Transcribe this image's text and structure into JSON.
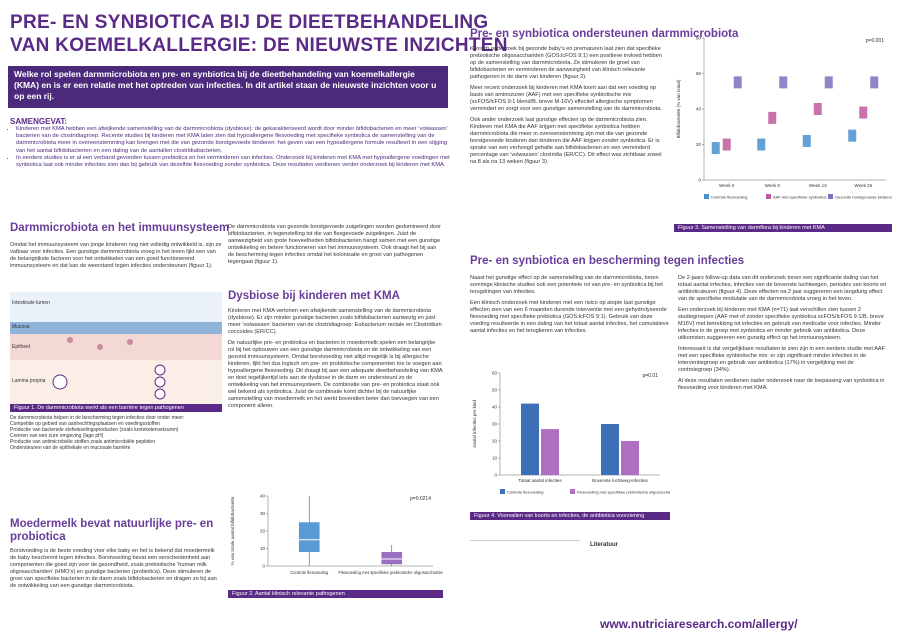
{
  "header": {
    "title_line1": "PRE- EN SYNBIOTICA BIJ DE DIEETBEHANDELING",
    "title_line2": "VAN KOEMELKALLERGIE: DE NIEUWSTE INZICHTEN"
  },
  "intro": "Welke rol spelen darmmicrobiota en pre- en synbiotica bij de dieetbehandeling van koemelkallergie (KMA) en is er een relatie met het optreden van infecties. In dit artikel staan de nieuwste inzichten voor u op een rij.",
  "summary": {
    "heading": "SAMENGEVAT:",
    "bullets": [
      "Kinderen met KMA hebben een afwijkende samenstelling van de darmmicrobiota (dysbiose): de gekarakteriseerd wordt door minder bifidobacterien en meer ‘volwassen’ bacterien van de clostridiagroep. Recente studies bij kinderen met KMA laten zien dat hypoallergene flesvoeding met specifieke synbiotica de samenstelling van de darmmicrobiota meer in overeenstemming kan brengen met die van gezonde borstgevoede kinderen: het geven van een hypoallergene formule resulteert in een stijging van het aantal bifidobacterien en een daling van de aantallen clostridiabacterien.",
      "In eerdere studies is er al een verband gevonden tussen prebiotica en het verminderen van infecties. Onderzoek bij kinderen met KMA met hypoallergene voedingen met synbiotica laat ook minder infecties zien dan bij gebruik van dezelfde flesvoeding zonder synbiotica. Deze resultaten verdienen verder onderzoek bij kinderen met KMA."
    ]
  },
  "sections": [
    {
      "heading": "Darmmicrobiota en het immuunsysteem",
      "paragraphs": [
        "Omdat het immuunsysteem van jonge kinderen nog niet volledig ontwikkeld is, zijn ze vatbaar voor infecties. Een gunstige darmmicrobiota vroeg in het leven lijkt een van de belangrijkste factoren voor het ontwikkelen van een goed functionerend immuunsysteem en dat kan de weerstand tegen infecties ondersteunen (figuur 1).",
        "De darmmicrobiota van gezonde borstgevoede zuigelingen worden gedomineerd door bifidobacterien, in tegenstelling tot die van flesgevoede zuigelingen. Juist de aanwezigheid van grote hoeveelheden bifidobacterien hangt samen met een gunstige ontwikkeling en betere functioneren van het immuunsysteem. Ook draagt het bij aan de bescherming tegen infecties omdat het kolonisatie en groei van pathogenen tegengaat (figuur 1)."
      ]
    },
    {
      "heading": "Dysbiose bij kinderen met KMA",
      "paragraphs": [
        "Kinderen met KMA vertonen een afwijkende samenstelling van de darmmicrobiota (dysbiose). Er zijn minder gunstige bacterien zoals bifidobacterien aanwezig en juist meer ‘volwassen’ bacterien van de clostridiagroep: Eubacterium rectale en Clostridium coccoides (ER/CC).",
        "De natuurlijke pre- en probiotica en bacterien in moedermelk spelen een belangrijke rol bij het opbouwen van een gunstige darmmicrobiota en de ontwikkeling van een gezond immuunsysteem. Omdat borstvoeding niet altijd mogelijk is bij allergische kinderen, lijkt het dus logisch om pre- en probiotische componenten toe te voegen aan hypoallergene flesvoeding. Dit draagt bij aan een adequate dieetbehandeling van KMA en doet tegelijkertijd iets aan de dysbiose in de darm en ondersteunt zo de ontwikkeling van het immuunsysteem. De combinatie van pre- en probiotica staat ook wel bekend als synbiotica. Juist de combinatie komt dichter bij de natuurlijke samenstelling van moedermelk en het werkt bovendien beter dan toevoegen van een component alleen."
      ]
    },
    {
      "heading": "Moedermelk bevat natuurlijke pre- en probiotica",
      "paragraphs": [
        "Borstvoeding is de beste voeding voor elke baby en het is bekend dat moedermelk de baby beschermt tegen infecties. Borstvoeding bevat een verscheidenheid aan componenten die goed zijn voor de gezondheid, zoals prebiotische ‘human milk oligosacchariden’ (HMO’s) en gunstige bacterien (probiotica). Deze stimuleren de groei van specifieke bacterien in de darm zoals bifidobacterien en dragen zo bij aan de ontwikkeling van een gunstige darmmicrobiota."
      ]
    },
    {
      "heading": "Pre- en synbiotica ondersteunen darmmicrobiota",
      "paragraphs": [
        "Klinisch onderzoek bij gezonde baby’s en prematuren laat zien dat specifieke prebiotische oligosacchariden (GOS:lcFOS 9:1) een positieve invloed hebben op de samenstelling van darmmicrobiota. Ze stimuleren de groei van bifidobacterien en verminderen de aanwezigheid van klinisch relevante pathogenen in de darm van kinderen (figuur 2).",
        "Meer recent onderzoek bij kinderen met KMA toont aan dat een voeding op basis van aminozuren (AAF) met een specifieke synbiotische mix (scFOS/lcFOS 9:1 blend/B. breve M-16V) effectief allergische symptomen vermindert en zorgt voor een gunstiger samenstelling van de darmmicrobiota.",
        "Ook ander onderzoek laat gunstige effecten op de darmmicrobiota zien. Kinderen met KMA die AAF krijgen met specifieke synbiotica hebben darmmicrobiota die meer in overeenstemming zijn met die van gezonde borstgevoede kinderen dan kinderen die AAF krijgen zonder synbiotica. Er is sprake van een verhoogd gehalte aan bifidobacterien en een verminderd percentage van ‘volwassen’ clostridia (ER/CC). Dit effect was zichtbaar zowel na 8 als na 13 weken (figuur 3)."
      ]
    },
    {
      "heading": "Pre- en synbiotica en bescherming tegen infecties",
      "paragraphs": [
        "Naast het gunstige effect op de samenstelling van de darmmicrobiota, tonen sommige klinische studies ook een potentiele rol van pre- en synbiotica bij het terugdringen van infecties.",
        "Een klinisch onderzoek met kinderen met een risico op atopie laat gunstige effecten zien van een 6 maanden durende interventie met een gehydrolyseerde flesvoeding met specifieke prebiotica (GOS:lcFOS 9:1). Gebruik van deze voeding resulteerde in een daling van het totaal aantal infecties, het cumulatieve aantal infecties en het terugkeren van infecties.",
        "De 2-jaars follow-up data van dit onderzoek tonen een significante daling van het totaal aantal infecties, infecties van de bovenste luchtwegen, periodes van koorts en antibioticakuren (figuur 4). Deze effecten na 2 jaar suggereren een langdurig effect van de specifieke modulatie van de darmmicrobiota vroeg in het leven.",
        "Een onderzoek bij kinderen met KMA (n=71) laat verschillen zien tussen 2 studiegroepen (AAF met of zonder specifieke synbiotica scFOS/lcFOS 9:1/B. breve M16V) met betrekking tot infecties en gebruik van medicatie voor infecties. Minder infecties in de groep met synbiotica en minder gebruik van antibiotica. Deze uitkomsten suggereren een gunstig effect op het immuunsysteem.",
        "Interessant is dat vergelijkbare resultaten te zien zijn in een eerdere studie met AAF met een specifieke synbiotische mix: er zijn significant minder infecties in de interventiegroep en gebruik van antibiotica (17%) in vergelijking met de controlegroep (34%).",
        "Al deze resultaten verdienen nader onderzoek naar de toepassing van synbiotica in flesvoeding voor kinderen met KMA."
      ]
    }
  ],
  "figures": {
    "fig1": {
      "caption": "Figuur 1. De darmmicrobiota werkt als een barrière tegen pathogenen",
      "labels": [
        "Intestinale lumen",
        "Mucosa",
        "Epitheel",
        "Lamina propria"
      ],
      "notes": [
        "De darmmicrobiota helpen in de bescherming tegen infecties door onder meer:",
        "Competitie op gebied van aanhechtingsplaatsen en voedingsstoffen",
        "Productie van bacteriele stofwisselingsproducten (zoals korteketenvetzuren)",
        "Creëren van een zure omgeving (lage pH)",
        "Productie van antimicrobiële stoffen zoals antimicrobiële peptiden",
        "Ondersteunen van de epitheliale en mucosale barrière"
      ]
    },
    "fig2": {
      "caption": "Figuur 2. Aantal klinisch relevante pathogenen",
      "chart_data": {
        "type": "box",
        "y_label": "% van totale aantal bifidobacteriën",
        "annotation": "p=0.0214",
        "categories": [
          "Controle flesvoeding",
          "Flesvoeding met specifieke prebiotische oligosacchariden"
        ],
        "colors": [
          "#5b9bd5",
          "#9b6fc0"
        ],
        "min": [
          0,
          0
        ],
        "q1": [
          8,
          1
        ],
        "median": [
          15,
          4
        ],
        "q3": [
          25,
          8
        ],
        "max": [
          40,
          12
        ],
        "ylim": [
          0,
          40
        ],
        "yticks": [
          0,
          10,
          20,
          30,
          40
        ]
      }
    },
    "fig3": {
      "caption": "Figuur 3. Samenstelling van darmflora bij kinderen met KMA",
      "chart_data": {
        "type": "dots",
        "y_label": "Bifidobacteriën (% van totaal)",
        "annotation": "p=0.001",
        "categories": [
          "Week 0",
          "Week 8",
          "Week 13",
          "Week 26"
        ],
        "series": [
          {
            "name": "Controle flesvoeding",
            "color": "#4a8fd0",
            "values": [
              18,
              20,
              22,
              25
            ]
          },
          {
            "name": "AAF met specifieke synbiotica",
            "color": "#c05aa0",
            "values": [
              20,
              35,
              40,
              38
            ]
          },
          {
            "name": "Gezonde borstgevoede kinderen",
            "color": "#7f6fbf",
            "values": [
              55,
              55,
              55,
              55
            ]
          }
        ],
        "ylim": [
          0,
          80
        ],
        "yticks": [
          0,
          20,
          40,
          60,
          80
        ]
      }
    },
    "fig4": {
      "caption": "Figuur 4. Voorvallen van koorts en infecties, de antibiotica voorziening",
      "chart_data": {
        "type": "grouped-bar",
        "y_label": "Aantal infecties per kind",
        "annotation": "p=0.01",
        "categories": [
          "Totaal aantal infecties",
          "Bovenste luchtweg-infecties"
        ],
        "series": [
          {
            "name": "Controle flesvoeding",
            "color": "#3d6fb6",
            "values": [
              42,
              30
            ]
          },
          {
            "name": "Flesvoeding met specifieke prebiotische oligosacchariden",
            "color": "#b06fc0",
            "values": [
              27,
              20
            ]
          }
        ],
        "ylim": [
          0,
          60
        ],
        "yticks": [
          0,
          10,
          20,
          30,
          40,
          50,
          60
        ]
      }
    }
  },
  "references_heading": "Literatuur",
  "footer_url": "www.nutriciaresearch.com/allergy/"
}
